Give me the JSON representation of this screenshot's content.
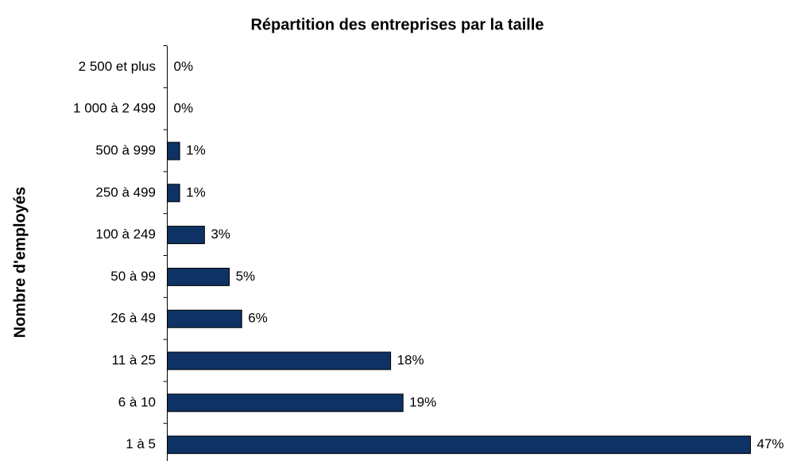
{
  "chart_data": {
    "type": "bar",
    "orientation": "horizontal",
    "title": "Répartition des entreprises par la taille",
    "y_label": "Nombre d'employés",
    "categories": [
      "2 500 et plus",
      "1 000 à 2 499",
      "500 à 999",
      "250 à 499",
      "100 à 249",
      "50 à 99",
      "26 à 49",
      "11 à 25",
      "6 à 10",
      "1 à 5"
    ],
    "values": [
      0,
      0,
      1,
      1,
      3,
      5,
      6,
      18,
      19,
      47
    ],
    "value_labels": [
      "0%",
      "0%",
      "1%",
      "1%",
      "3%",
      "5%",
      "6%",
      "18%",
      "19%",
      "47%"
    ],
    "color": "#0e3263"
  }
}
